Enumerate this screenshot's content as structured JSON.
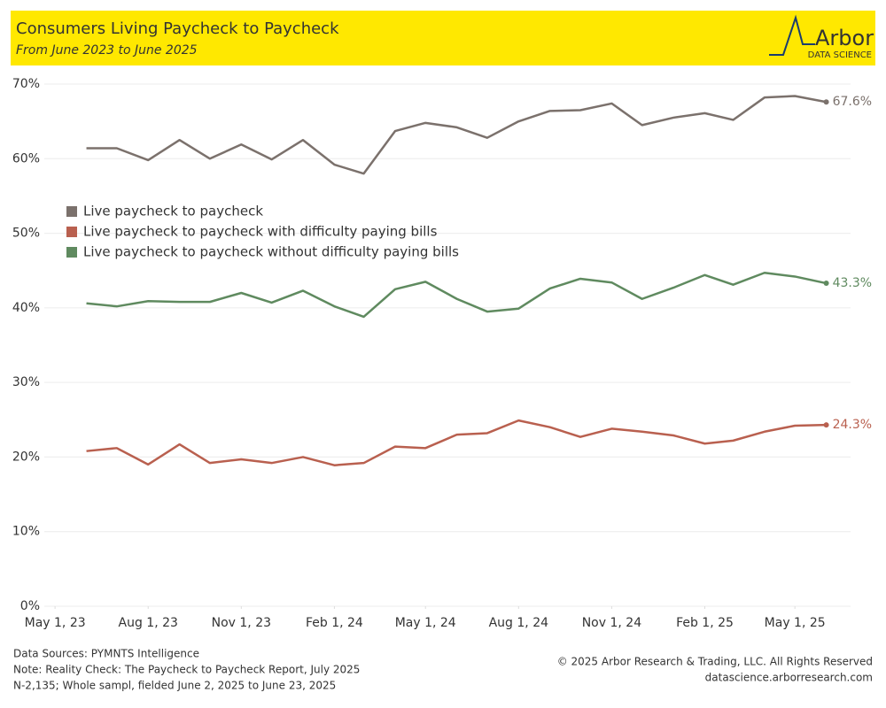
{
  "chart_data": {
    "type": "line",
    "title": "Consumers Living Paycheck to Paycheck",
    "subtitle": "From June 2023 to June 2025",
    "x": [
      "2023-06-01",
      "2023-07-01",
      "2023-08-01",
      "2023-09-01",
      "2023-10-01",
      "2023-11-01",
      "2023-12-01",
      "2024-01-01",
      "2024-02-01",
      "2024-03-01",
      "2024-04-01",
      "2024-05-01",
      "2024-06-01",
      "2024-07-01",
      "2024-08-01",
      "2024-09-01",
      "2024-10-01",
      "2024-11-01",
      "2024-12-01",
      "2025-01-01",
      "2025-02-01",
      "2025-03-01",
      "2025-04-01",
      "2025-05-01",
      "2025-06-01"
    ],
    "series": [
      {
        "name": "Live paycheck to paycheck",
        "color": "#7b716c",
        "values": [
          61.4,
          61.4,
          59.8,
          62.5,
          60.0,
          61.9,
          59.9,
          62.5,
          59.2,
          58.0,
          63.7,
          64.8,
          64.2,
          62.8,
          65.0,
          66.4,
          66.5,
          67.4,
          64.5,
          65.5,
          66.1,
          65.2,
          68.2,
          68.4,
          67.6
        ],
        "value_labels": [
          null,
          null,
          null,
          null,
          null,
          null,
          null,
          null,
          null,
          null,
          null,
          null,
          null,
          null,
          null,
          null,
          null,
          null,
          null,
          null,
          null,
          null,
          null,
          null,
          "67.6%"
        ]
      },
      {
        "name": "Live paycheck to paycheck with difficulty paying bills",
        "color": "#b9604f",
        "values": [
          20.8,
          21.2,
          19.0,
          21.7,
          19.2,
          19.7,
          19.2,
          20.0,
          18.9,
          19.2,
          21.4,
          21.2,
          23.0,
          23.2,
          24.9,
          24.0,
          22.7,
          23.8,
          23.4,
          22.9,
          21.8,
          22.2,
          23.4,
          24.2,
          24.3
        ],
        "value_labels": [
          null,
          null,
          null,
          null,
          null,
          null,
          null,
          null,
          null,
          null,
          null,
          null,
          null,
          null,
          null,
          null,
          null,
          null,
          null,
          null,
          null,
          null,
          null,
          null,
          "24.3%"
        ]
      },
      {
        "name": "Live paycheck to paycheck without difficulty paying bills",
        "color": "#5f8a5f",
        "values": [
          40.6,
          40.2,
          40.9,
          40.8,
          40.8,
          42.0,
          40.7,
          42.3,
          40.2,
          38.8,
          42.5,
          43.5,
          41.2,
          39.5,
          39.9,
          42.6,
          43.9,
          43.4,
          41.2,
          42.7,
          44.4,
          43.1,
          44.7,
          44.2,
          43.3
        ],
        "value_labels": [
          null,
          null,
          null,
          null,
          null,
          null,
          null,
          null,
          null,
          null,
          null,
          null,
          null,
          null,
          null,
          null,
          null,
          null,
          null,
          null,
          null,
          null,
          null,
          null,
          "43.3%"
        ]
      }
    ],
    "xlim": [
      "2023-04-16",
      "2025-06-25"
    ],
    "xticks": [
      {
        "value": "2023-05-01",
        "label": "May 1, 23"
      },
      {
        "value": "2023-08-01",
        "label": "Aug 1, 23"
      },
      {
        "value": "2023-11-01",
        "label": "Nov 1, 23"
      },
      {
        "value": "2024-02-01",
        "label": "Feb 1, 24"
      },
      {
        "value": "2024-05-01",
        "label": "May 1, 24"
      },
      {
        "value": "2024-08-01",
        "label": "Aug 1, 24"
      },
      {
        "value": "2024-11-01",
        "label": "Nov 1, 24"
      },
      {
        "value": "2025-02-01",
        "label": "Feb 1, 25"
      },
      {
        "value": "2025-05-01",
        "label": "May 1, 25"
      }
    ],
    "ylim": [
      0,
      70
    ],
    "yticks": [
      {
        "value": 0,
        "label": "0%"
      },
      {
        "value": 10,
        "label": "10%"
      },
      {
        "value": 20,
        "label": "20%"
      },
      {
        "value": 30,
        "label": "30%"
      },
      {
        "value": 40,
        "label": "40%"
      },
      {
        "value": 50,
        "label": "50%"
      },
      {
        "value": 60,
        "label": "60%"
      },
      {
        "value": 70,
        "label": "70%"
      }
    ],
    "grid": true,
    "legend": "left"
  },
  "logo": {
    "name": "Arbor",
    "tagline": "DATA SCIENCE"
  },
  "notes": [
    "Data Sources: PYMNTS Intelligence",
    "Note: Reality Check: The Paycheck to Paycheck Report, July 2025",
    "N-2,135; Whole sampl, fielded June 2, 2025 to June 23, 2025"
  ],
  "credits": [
    "© 2025 Arbor Research & Trading, LLC. All Rights Reserved",
    "datascience.arborresearch.com"
  ]
}
